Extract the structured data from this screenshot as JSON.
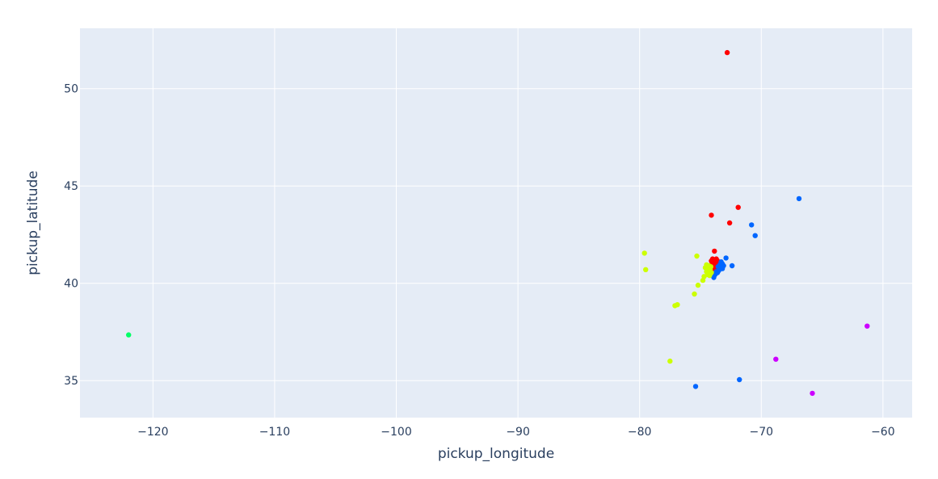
{
  "chart_data": {
    "type": "scatter",
    "xlabel": "pickup_longitude",
    "ylabel": "pickup_latitude",
    "xlim": [
      -126,
      -57.6
    ],
    "ylim": [
      33.1,
      53.1
    ],
    "x_ticks": [
      -120,
      -110,
      -100,
      -90,
      -80,
      -70,
      -60
    ],
    "y_ticks": [
      35,
      40,
      45,
      50
    ],
    "x_tick_labels": [
      "−120",
      "−110",
      "−100",
      "−90",
      "−80",
      "−70",
      "−60"
    ],
    "y_tick_labels": [
      "35",
      "40",
      "45",
      "50"
    ],
    "grid": true,
    "legend": "none",
    "plot_background": "#e5ecf6",
    "series": [
      {
        "color": "#ff0000",
        "points": [
          [
            -72.8,
            51.85
          ],
          [
            -71.9,
            43.9
          ],
          [
            -72.6,
            43.1
          ],
          [
            -74.1,
            43.5
          ],
          [
            -73.85,
            41.65
          ],
          [
            -74.0,
            41.25
          ],
          [
            -73.7,
            41.25
          ],
          [
            -73.9,
            41.1
          ],
          [
            -73.6,
            41.15
          ],
          [
            -74.05,
            41.0
          ],
          [
            -73.8,
            40.95
          ],
          [
            -73.95,
            40.85
          ],
          [
            -73.65,
            40.9
          ],
          [
            -73.85,
            40.75
          ],
          [
            -74.1,
            41.15
          ],
          [
            -73.75,
            41.05
          ],
          [
            -73.95,
            41.2
          ],
          [
            -73.6,
            41.0
          ],
          [
            -74.0,
            40.8
          ],
          [
            -73.8,
            41.1
          ]
        ]
      },
      {
        "color": "#0066ff",
        "points": [
          [
            -66.9,
            44.35
          ],
          [
            -70.8,
            43.0
          ],
          [
            -70.5,
            42.45
          ],
          [
            -72.4,
            40.9
          ],
          [
            -71.8,
            35.05
          ],
          [
            -75.4,
            34.7
          ],
          [
            -72.9,
            41.3
          ],
          [
            -73.3,
            41.1
          ],
          [
            -73.2,
            40.75
          ],
          [
            -73.5,
            40.65
          ],
          [
            -73.6,
            40.55
          ],
          [
            -73.4,
            40.95
          ],
          [
            -73.1,
            40.9
          ],
          [
            -73.8,
            40.45
          ],
          [
            -73.9,
            40.3
          ],
          [
            -73.3,
            40.8
          ],
          [
            -73.55,
            40.85
          ],
          [
            -73.2,
            41.0
          ],
          [
            -73.7,
            40.6
          ],
          [
            -73.45,
            40.7
          ]
        ]
      },
      {
        "color": "#ccff00",
        "points": [
          [
            -79.6,
            41.55
          ],
          [
            -79.5,
            40.7
          ],
          [
            -75.3,
            41.4
          ],
          [
            -74.3,
            40.9
          ],
          [
            -74.5,
            40.6
          ],
          [
            -74.7,
            40.35
          ],
          [
            -74.8,
            40.15
          ],
          [
            -75.2,
            39.9
          ],
          [
            -75.5,
            39.45
          ],
          [
            -76.9,
            38.9
          ],
          [
            -77.1,
            38.85
          ],
          [
            -77.5,
            36.0
          ],
          [
            -74.2,
            40.7
          ],
          [
            -74.4,
            40.45
          ],
          [
            -74.1,
            40.55
          ],
          [
            -74.6,
            40.8
          ],
          [
            -74.25,
            40.4
          ],
          [
            -74.5,
            40.95
          ],
          [
            -74.35,
            40.65
          ],
          [
            -74.15,
            40.85
          ]
        ]
      },
      {
        "color": "#00ff66",
        "points": [
          [
            -122.0,
            37.35
          ]
        ]
      },
      {
        "color": "#cc00ff",
        "points": [
          [
            -61.3,
            37.8
          ],
          [
            -68.8,
            36.1
          ],
          [
            -65.8,
            34.35
          ]
        ]
      }
    ]
  }
}
